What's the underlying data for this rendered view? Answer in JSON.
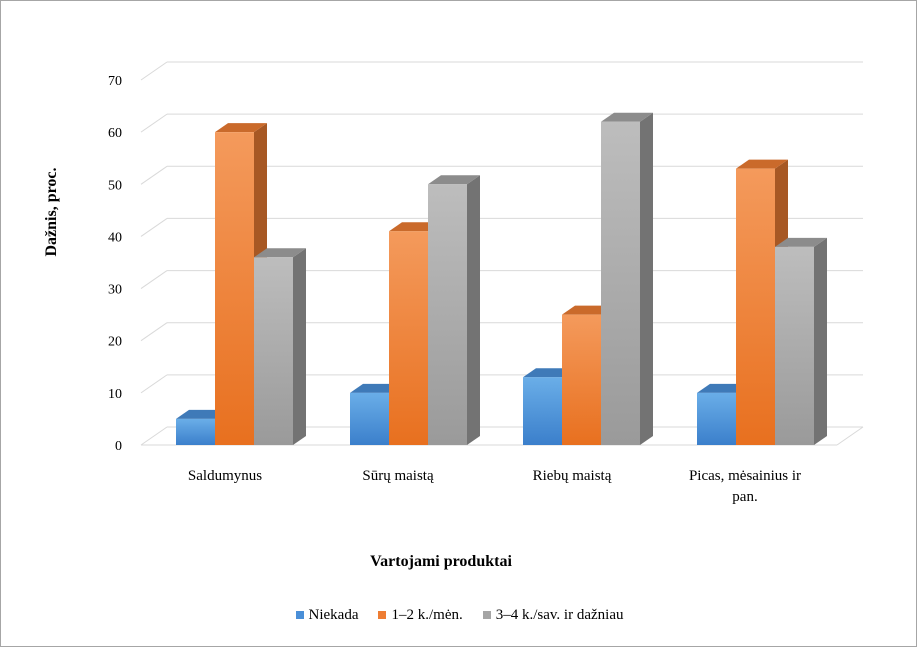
{
  "chart_data": {
    "type": "bar",
    "categories": [
      "Saldumynus",
      "Sūrų maistą",
      "Riebų maistą",
      "Picas, mėsainius ir pan."
    ],
    "series": [
      {
        "name": "Niekada",
        "values": [
          5,
          10,
          13,
          10
        ],
        "color": "#4a8fd8"
      },
      {
        "name": "1–2 k./mėn.",
        "values": [
          60,
          41,
          25,
          53
        ],
        "color": "#ee7d33"
      },
      {
        "name": "3–4 k./sav. ir dažniau",
        "values": [
          36,
          50,
          62,
          38
        ],
        "color": "#a5a5a5"
      }
    ],
    "xlabel": "Vartojami produktai",
    "ylabel": "Dažnis, proc.",
    "ylim": [
      0,
      70
    ],
    "yticks": [
      0,
      10,
      20,
      30,
      40,
      50,
      60,
      70
    ],
    "grid": true,
    "legend_position": "bottom",
    "style": "3d-column"
  }
}
